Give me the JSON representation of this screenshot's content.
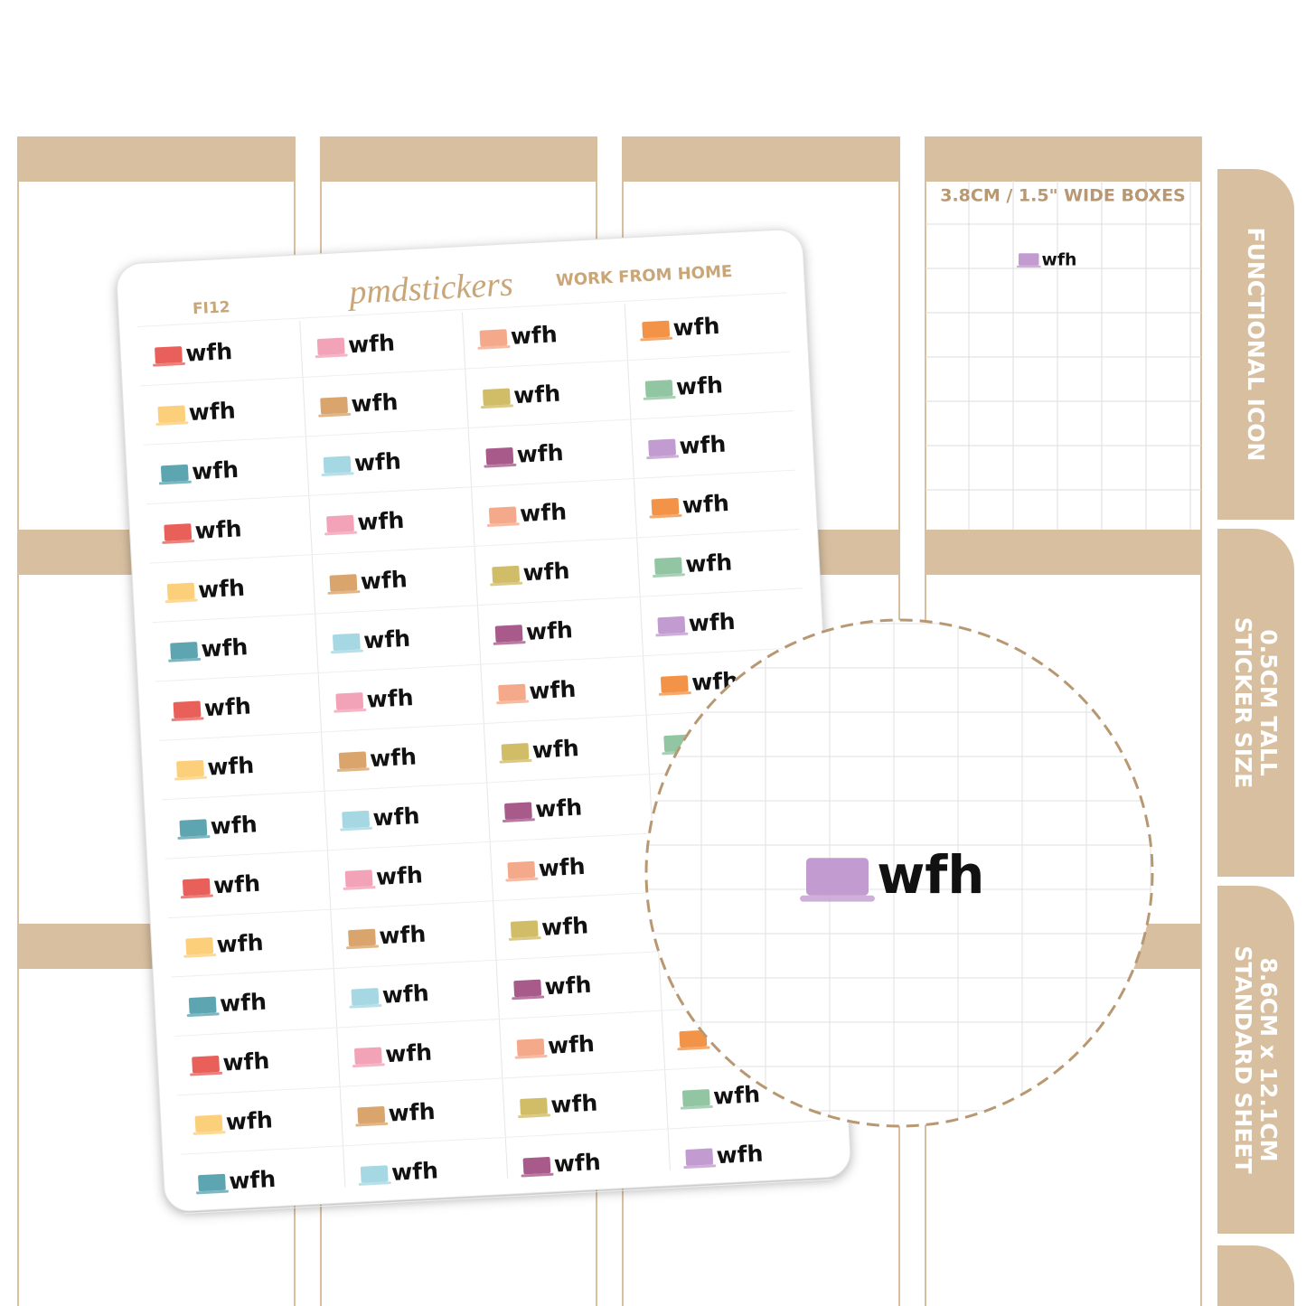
{
  "sheet": {
    "code": "FI12",
    "brand": "pmdstickers",
    "title": "WORK FROM HOME"
  },
  "stickers": {
    "label": "wfh",
    "rows": 15,
    "colors": [
      [
        "#e9605a",
        "#fcd07a",
        "#5ea5b2"
      ],
      [
        "#f3a3b8",
        "#d9a56c",
        "#a5d8e3"
      ],
      [
        "#f5a98b",
        "#d1bd67",
        "#a85a8a"
      ],
      [
        "#f39347",
        "#92c6a2",
        "#c29bd0"
      ]
    ]
  },
  "preview": {
    "heading": "3.8CM / 1.5\" WIDE BOXES",
    "color": "#c29bd0"
  },
  "tabs": [
    {
      "lines": [
        "FUNCTIONAL ICON"
      ]
    },
    {
      "lines": [
        "STICKER SIZE",
        "0.5CM TALL"
      ]
    },
    {
      "lines": [
        "STANDARD SHEET",
        "8.6CM x 12.1CM"
      ]
    }
  ]
}
